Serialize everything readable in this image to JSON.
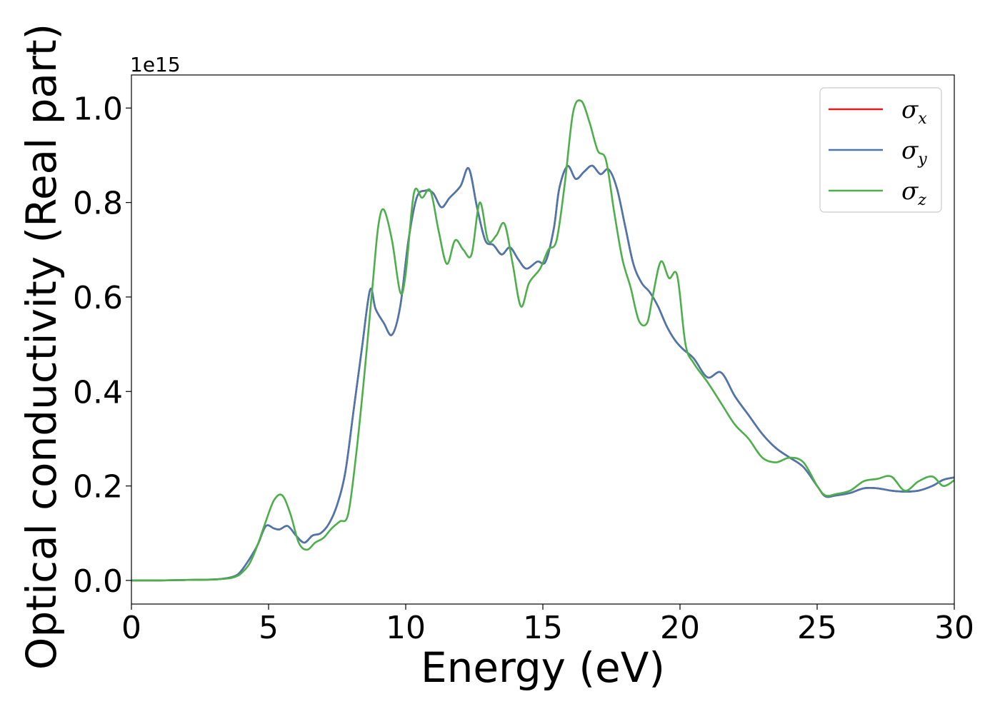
{
  "chart_data": {
    "type": "line",
    "xlabel": "Energy (eV)",
    "ylabel": "Optical conductivity (Real part)",
    "y_scale_label": "1e15",
    "xlim": [
      0,
      30
    ],
    "ylim": [
      -0.05,
      1.07
    ],
    "x_ticks": [
      {
        "value": 0,
        "label": "0"
      },
      {
        "value": 5,
        "label": "5"
      },
      {
        "value": 10,
        "label": "10"
      },
      {
        "value": 15,
        "label": "15"
      },
      {
        "value": 20,
        "label": "20"
      },
      {
        "value": 25,
        "label": "25"
      },
      {
        "value": 30,
        "label": "30"
      }
    ],
    "y_ticks": [
      {
        "value": 0.0,
        "label": "0.0"
      },
      {
        "value": 0.2,
        "label": "0.2"
      },
      {
        "value": 0.4,
        "label": "0.4"
      },
      {
        "value": 0.6,
        "label": "0.6"
      },
      {
        "value": 0.8,
        "label": "0.8"
      },
      {
        "value": 1.0,
        "label": "1.0"
      }
    ],
    "grid": false,
    "legend_position": "top-right",
    "series": [
      {
        "name": "σx",
        "symbol": "σ",
        "subscript": "x",
        "color": "#e41a1c",
        "x": [
          0,
          1,
          2,
          3,
          3.5,
          3.8,
          4.0,
          4.3,
          4.6,
          4.9,
          5.2,
          5.4,
          5.7,
          6.0,
          6.3,
          6.6,
          6.9,
          7.2,
          7.5,
          7.8,
          8.1,
          8.4,
          8.7,
          8.9,
          9.2,
          9.5,
          9.8,
          10.1,
          10.4,
          10.7,
          11.0,
          11.3,
          11.6,
          12.0,
          12.3,
          12.6,
          12.9,
          13.2,
          13.5,
          13.8,
          14.1,
          14.4,
          14.8,
          15.1,
          15.4,
          15.6,
          15.9,
          16.2,
          16.5,
          16.8,
          17.1,
          17.4,
          17.7,
          18.0,
          18.3,
          18.6,
          18.9,
          19.2,
          19.5,
          19.8,
          20.1,
          20.5,
          21.0,
          21.5,
          22.0,
          22.5,
          23.0,
          23.5,
          24.0,
          24.5,
          25.0,
          25.3,
          25.7,
          26.2,
          26.7,
          27.2,
          27.7,
          28.2,
          28.7,
          29.2,
          29.6,
          30.0
        ],
        "y": [
          0,
          0,
          0.001,
          0.002,
          0.005,
          0.01,
          0.02,
          0.045,
          0.075,
          0.115,
          0.11,
          0.108,
          0.115,
          0.095,
          0.08,
          0.095,
          0.1,
          0.12,
          0.16,
          0.23,
          0.36,
          0.49,
          0.615,
          0.575,
          0.545,
          0.52,
          0.58,
          0.72,
          0.81,
          0.825,
          0.82,
          0.79,
          0.81,
          0.835,
          0.872,
          0.79,
          0.72,
          0.71,
          0.69,
          0.705,
          0.68,
          0.66,
          0.675,
          0.675,
          0.745,
          0.83,
          0.877,
          0.85,
          0.865,
          0.878,
          0.86,
          0.87,
          0.83,
          0.75,
          0.67,
          0.63,
          0.61,
          0.58,
          0.54,
          0.51,
          0.49,
          0.47,
          0.43,
          0.44,
          0.39,
          0.35,
          0.31,
          0.28,
          0.26,
          0.24,
          0.2,
          0.178,
          0.18,
          0.185,
          0.195,
          0.195,
          0.19,
          0.188,
          0.19,
          0.2,
          0.213,
          0.218
        ]
      },
      {
        "name": "σy",
        "symbol": "σ",
        "subscript": "y",
        "color": "#4a77ae",
        "x": [
          0,
          1,
          2,
          3,
          3.5,
          3.8,
          4.0,
          4.3,
          4.6,
          4.9,
          5.2,
          5.4,
          5.7,
          6.0,
          6.3,
          6.6,
          6.9,
          7.2,
          7.5,
          7.8,
          8.1,
          8.4,
          8.7,
          8.9,
          9.2,
          9.5,
          9.8,
          10.1,
          10.4,
          10.7,
          11.0,
          11.3,
          11.6,
          12.0,
          12.3,
          12.6,
          12.9,
          13.2,
          13.5,
          13.8,
          14.1,
          14.4,
          14.8,
          15.1,
          15.4,
          15.6,
          15.9,
          16.2,
          16.5,
          16.8,
          17.1,
          17.4,
          17.7,
          18.0,
          18.3,
          18.6,
          18.9,
          19.2,
          19.5,
          19.8,
          20.1,
          20.5,
          21.0,
          21.5,
          22.0,
          22.5,
          23.0,
          23.5,
          24.0,
          24.5,
          25.0,
          25.3,
          25.7,
          26.2,
          26.7,
          27.2,
          27.7,
          28.2,
          28.7,
          29.2,
          29.6,
          30.0
        ],
        "y": [
          0,
          0,
          0.001,
          0.002,
          0.005,
          0.01,
          0.02,
          0.045,
          0.075,
          0.115,
          0.11,
          0.108,
          0.115,
          0.095,
          0.08,
          0.095,
          0.1,
          0.12,
          0.16,
          0.23,
          0.36,
          0.49,
          0.615,
          0.575,
          0.545,
          0.52,
          0.58,
          0.72,
          0.81,
          0.825,
          0.82,
          0.79,
          0.81,
          0.835,
          0.872,
          0.79,
          0.72,
          0.71,
          0.69,
          0.705,
          0.68,
          0.66,
          0.675,
          0.675,
          0.745,
          0.83,
          0.877,
          0.85,
          0.865,
          0.878,
          0.86,
          0.87,
          0.83,
          0.75,
          0.67,
          0.63,
          0.61,
          0.58,
          0.54,
          0.51,
          0.49,
          0.47,
          0.43,
          0.44,
          0.39,
          0.35,
          0.31,
          0.28,
          0.26,
          0.24,
          0.2,
          0.178,
          0.18,
          0.185,
          0.195,
          0.195,
          0.19,
          0.188,
          0.19,
          0.2,
          0.213,
          0.218
        ]
      },
      {
        "name": "σz",
        "symbol": "σ",
        "subscript": "z",
        "color": "#4daf4a",
        "x": [
          0,
          1,
          2,
          3,
          3.5,
          3.8,
          4.0,
          4.3,
          4.6,
          4.9,
          5.2,
          5.5,
          5.8,
          6.1,
          6.4,
          6.7,
          7.0,
          7.3,
          7.6,
          7.9,
          8.2,
          8.5,
          8.8,
          9.0,
          9.2,
          9.5,
          9.8,
          10.0,
          10.3,
          10.6,
          10.9,
          11.2,
          11.5,
          11.8,
          12.1,
          12.4,
          12.7,
          13.0,
          13.3,
          13.6,
          13.9,
          14.2,
          14.5,
          14.9,
          15.2,
          15.5,
          15.8,
          16.1,
          16.4,
          16.7,
          17.0,
          17.3,
          17.6,
          17.9,
          18.2,
          18.5,
          18.8,
          19.0,
          19.3,
          19.6,
          19.9,
          20.2,
          20.5,
          21.0,
          21.5,
          22.0,
          22.5,
          23.0,
          23.5,
          24.0,
          24.5,
          25.0,
          25.3,
          25.7,
          26.2,
          26.7,
          27.2,
          27.7,
          28.2,
          28.7,
          29.2,
          29.6,
          30.0
        ],
        "y": [
          0,
          0,
          0.001,
          0.002,
          0.004,
          0.008,
          0.015,
          0.035,
          0.075,
          0.125,
          0.17,
          0.18,
          0.14,
          0.08,
          0.065,
          0.08,
          0.09,
          0.11,
          0.125,
          0.14,
          0.27,
          0.44,
          0.63,
          0.75,
          0.785,
          0.72,
          0.61,
          0.65,
          0.82,
          0.81,
          0.825,
          0.74,
          0.67,
          0.72,
          0.7,
          0.69,
          0.8,
          0.72,
          0.73,
          0.755,
          0.67,
          0.58,
          0.63,
          0.66,
          0.7,
          0.72,
          0.84,
          0.99,
          1.015,
          0.97,
          0.91,
          0.89,
          0.78,
          0.68,
          0.62,
          0.55,
          0.545,
          0.6,
          0.675,
          0.64,
          0.645,
          0.5,
          0.46,
          0.42,
          0.375,
          0.33,
          0.3,
          0.26,
          0.25,
          0.26,
          0.25,
          0.2,
          0.18,
          0.183,
          0.19,
          0.21,
          0.215,
          0.22,
          0.19,
          0.21,
          0.22,
          0.2,
          0.212
        ]
      }
    ]
  }
}
